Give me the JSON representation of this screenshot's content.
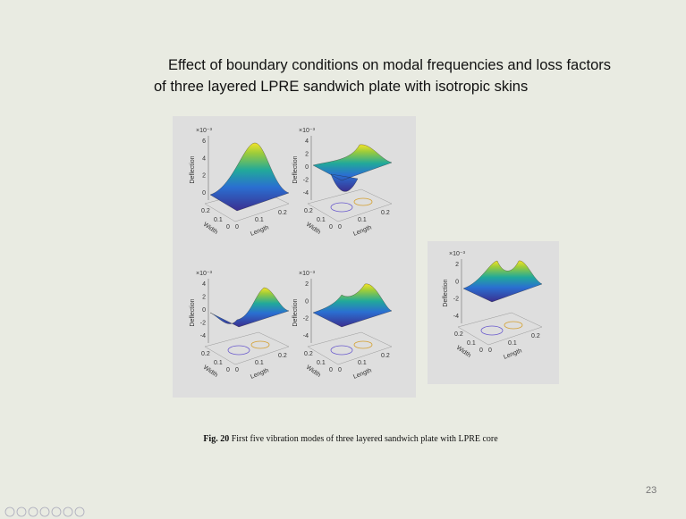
{
  "slide": {
    "title_lines": [
      "Effect of boundary conditions on modal frequencies and loss factors",
      "of three layered LPRE sandwich plate with isotropic skins"
    ],
    "plots": [
      {
        "exponent": "×10⁻³",
        "z_label": "Deflection",
        "z_ticks": [
          "6",
          "4",
          "2",
          "0"
        ],
        "width_label": "Width",
        "width_ticks": [
          "0.2",
          "0.1",
          "0"
        ],
        "length_label": "Length",
        "length_ticks": [
          "0",
          "0.1",
          "0.2"
        ]
      },
      {
        "exponent": "×10⁻³",
        "z_label": "Deflection",
        "z_ticks": [
          "4",
          "2",
          "0",
          "-2",
          "-4"
        ],
        "width_label": "Width",
        "width_ticks": [
          "0.2",
          "0.1",
          "0"
        ],
        "length_label": "Length",
        "length_ticks": [
          "0",
          "0.1",
          "0.2"
        ]
      },
      {
        "exponent": "×10⁻³",
        "z_label": "Deflection",
        "z_ticks": [
          "4",
          "2",
          "0",
          "-2",
          "-4"
        ],
        "width_label": "Width",
        "width_ticks": [
          "0.2",
          "0.1",
          "0"
        ],
        "length_label": "Length",
        "length_ticks": [
          "0",
          "0.1",
          "0.2"
        ]
      },
      {
        "exponent": "×10⁻³",
        "z_label": "Deflection",
        "z_ticks": [
          "2",
          "0",
          "-2",
          "-4"
        ],
        "width_label": "Width",
        "width_ticks": [
          "0.2",
          "0.1",
          "0"
        ],
        "length_label": "Length",
        "length_ticks": [
          "0",
          "0.1",
          "0.2"
        ]
      },
      {
        "exponent": "×10⁻³",
        "z_label": "Deflection",
        "z_ticks": [
          "2",
          "0",
          "-2",
          "-4"
        ],
        "width_label": "Width",
        "width_ticks": [
          "0.2",
          "0.1",
          "0"
        ],
        "length_label": "Length",
        "length_ticks": [
          "0",
          "0.1",
          "0.2"
        ]
      }
    ],
    "caption_bold": "Fig. 20",
    "caption": "First five vibration modes of three layered sandwich plate with LPRE core",
    "page_number": "23"
  }
}
